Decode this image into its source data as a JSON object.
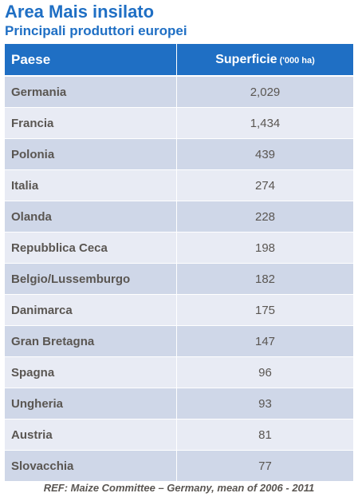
{
  "title": "Area Mais insilato",
  "subtitle": "Principali produttori europei",
  "table": {
    "headers": {
      "country": "Paese",
      "area": "Superficie",
      "area_unit": "('000 ha)"
    },
    "rows": [
      {
        "country": "Germania",
        "area": "2,029"
      },
      {
        "country": "Francia",
        "area": "1,434"
      },
      {
        "country": "Polonia",
        "area": "439"
      },
      {
        "country": "Italia",
        "area": "274"
      },
      {
        "country": "Olanda",
        "area": "228"
      },
      {
        "country": "Repubblica Ceca",
        "area": "198"
      },
      {
        "country": "Belgio/Lussemburgo",
        "area": "182"
      },
      {
        "country": "Danimarca",
        "area": "175"
      },
      {
        "country": "Gran Bretagna",
        "area": "147"
      },
      {
        "country": "Spagna",
        "area": "96"
      },
      {
        "country": "Ungheria",
        "area": "93"
      },
      {
        "country": "Austria",
        "area": "81"
      },
      {
        "country": "Slovacchia",
        "area": "77"
      }
    ]
  },
  "footer": "REF: Maize Committee – Germany, mean of 2006 - 2011",
  "colors": {
    "accent": "#1f6fc4",
    "row_odd": "#cfd7e8",
    "row_even": "#e8ebf4",
    "text": "#5a5652"
  }
}
